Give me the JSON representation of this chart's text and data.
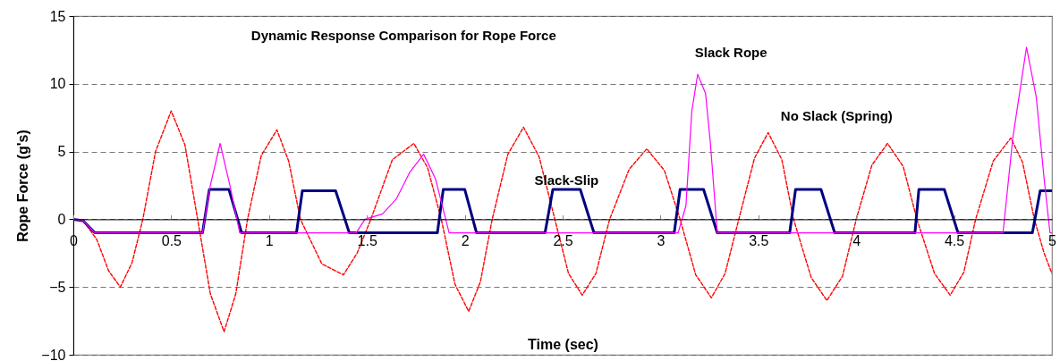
{
  "chart_data": {
    "type": "line",
    "title": "Dynamic Response Comparison for Rope Force",
    "xlabel": "Time (sec)",
    "ylabel": "Rope Force (g's)",
    "xlim": [
      0,
      5
    ],
    "xticks": [
      0,
      0.5,
      1,
      1.5,
      2,
      2.5,
      3,
      3.5,
      4,
      4.5,
      5
    ],
    "ylim": [
      -10,
      15
    ],
    "yticks": [
      -10,
      -5,
      0,
      5,
      10,
      15
    ],
    "grid": "y",
    "series": [
      {
        "name": "No Slack (Spring)",
        "color": "#ff0000",
        "line_style": "dashed",
        "x": [
          0,
          0.05,
          0.12,
          0.18,
          0.24,
          0.3,
          0.355,
          0.42,
          0.5,
          0.57,
          0.635,
          0.7,
          0.77,
          0.83,
          0.89,
          0.96,
          1.04,
          1.1,
          1.16,
          1.27,
          1.38,
          1.45,
          1.52,
          1.63,
          1.74,
          1.81,
          1.88,
          1.95,
          2.02,
          2.08,
          2.14,
          2.22,
          2.3,
          2.38,
          2.46,
          2.53,
          2.6,
          2.67,
          2.74,
          2.84,
          2.93,
          3.02,
          3.1,
          3.18,
          3.26,
          3.33,
          3.4,
          3.48,
          3.55,
          3.62,
          3.68,
          3.77,
          3.85,
          3.93,
          4,
          4.08,
          4.16,
          4.24,
          4.31,
          4.4,
          4.48,
          4.55,
          4.61,
          4.7,
          4.79,
          4.85,
          4.91,
          4.96,
          5
        ],
        "values": [
          0,
          -0.1,
          -1.5,
          -3.8,
          -5,
          -3.2,
          0,
          5,
          8,
          5.5,
          0,
          -5.5,
          -8.3,
          -5.5,
          0,
          4.7,
          6.6,
          4.3,
          0,
          -3.3,
          -4.1,
          -2.5,
          0,
          4.4,
          5.6,
          3.8,
          0,
          -4.8,
          -6.8,
          -4.6,
          0,
          4.8,
          6.8,
          4.6,
          0,
          -4,
          -5.6,
          -4,
          0,
          3.7,
          5.2,
          3.6,
          0,
          -4.1,
          -5.8,
          -4,
          0,
          4.5,
          6.4,
          4.4,
          0,
          -4.3,
          -6,
          -4.2,
          0,
          4,
          5.6,
          3.9,
          0,
          -4,
          -5.6,
          -3.9,
          0,
          4.3,
          6,
          4.2,
          0,
          -2.5,
          -4
        ]
      },
      {
        "name": "Slack-Slip",
        "color": "#000080",
        "x": [
          0,
          0.05,
          0.11,
          0.66,
          0.695,
          0.795,
          0.86,
          1.14,
          1.17,
          1.34,
          1.41,
          1.86,
          1.89,
          2,
          2.06,
          2.41,
          2.45,
          2.59,
          2.66,
          3.07,
          3.1,
          3.22,
          3.29,
          3.66,
          3.69,
          3.82,
          3.89,
          4.3,
          4.32,
          4.45,
          4.52,
          4.9,
          4.94,
          5
        ],
        "values": [
          0,
          -0.1,
          -1,
          -1,
          2.2,
          2.2,
          -1,
          -1,
          2.1,
          2.1,
          -1,
          -1,
          2.2,
          2.2,
          -1,
          -1,
          2.2,
          2.2,
          -1,
          -1,
          2.2,
          2.2,
          -1,
          -1,
          2.2,
          2.2,
          -1,
          -1,
          2.2,
          2.2,
          -1,
          -1,
          2.1,
          2.1
        ]
      },
      {
        "name": "Slack Rope",
        "color": "#ff00ff",
        "x": [
          0,
          0.05,
          0.11,
          0.66,
          0.7,
          0.75,
          0.8,
          0.85,
          1.445,
          1.49,
          1.58,
          1.65,
          1.72,
          1.79,
          1.85,
          1.92,
          3.09,
          3.13,
          3.16,
          3.19,
          3.23,
          3.255,
          3.29,
          4.75,
          4.8,
          4.87,
          4.92,
          4.96,
          4.99,
          5
        ],
        "values": [
          0,
          -0.1,
          -1,
          -1,
          2.5,
          5.6,
          2.5,
          -1,
          -1,
          0,
          0.4,
          1.5,
          3.5,
          4.8,
          3,
          -1,
          -1,
          1,
          8,
          10.7,
          9.3,
          5.6,
          -1,
          -1,
          6,
          12.7,
          9,
          3,
          -1,
          -1
        ]
      }
    ]
  }
}
